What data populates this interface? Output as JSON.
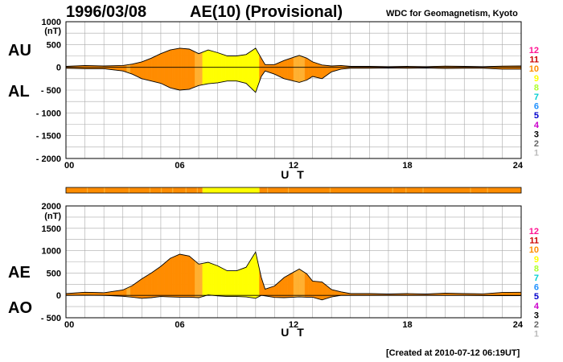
{
  "header": {
    "date": "1996/03/08",
    "title": "AE(10) (Provisional)",
    "source": "WDC for Geomagnetism, Kyoto"
  },
  "footer": {
    "created": "[Created at 2010-07-12 06:19UT]"
  },
  "legend_levels": [
    "12",
    "11",
    "10",
    "9",
    "8",
    "7",
    "6",
    "5",
    "4",
    "3",
    "2",
    "1"
  ],
  "colors": {
    "level_palette": [
      "#ff1493",
      "#cc0000",
      "#ff8c00",
      "#ffff00",
      "#adff2f",
      "#00ced1",
      "#1e90ff",
      "#0000cd",
      "#cc00cc",
      "#000000",
      "#666666",
      "#bbbbbb"
    ],
    "fill_orange": "#ff8c00",
    "fill_yellow": "#ffff00",
    "fill_light_orange": "#ffb030",
    "grid": "#aaaaaa"
  },
  "chart_data": [
    {
      "type": "area",
      "name": "AU/AL",
      "labels": {
        "upper": "AU",
        "lower": "AL"
      },
      "unit_label": "(nT)",
      "xlabel": "U T",
      "ylim": [
        -2000,
        1000
      ],
      "ytick_labels": [
        "1000",
        "500",
        "0",
        "- 500",
        "- 1000",
        "- 1500",
        "- 2000"
      ],
      "ytick_values": [
        1000,
        500,
        0,
        -500,
        -1000,
        -1500,
        -2000
      ],
      "xlim": [
        0,
        24
      ],
      "xtick_labels": [
        "00",
        "06",
        "12",
        "18",
        "24"
      ],
      "xtick_values": [
        0,
        6,
        12,
        18,
        24
      ],
      "grid": true,
      "x": [
        0,
        1,
        2,
        3,
        3.5,
        4,
        4.5,
        5,
        5.5,
        6,
        6.5,
        7,
        7.5,
        8,
        8.5,
        9,
        9.5,
        10,
        10.3,
        10.5,
        11,
        11.5,
        12,
        12.3,
        12.7,
        13,
        13.5,
        14,
        14.5,
        15,
        16,
        17,
        18,
        19,
        20,
        21,
        22,
        23,
        24
      ],
      "au": [
        20,
        40,
        30,
        40,
        70,
        120,
        200,
        300,
        380,
        420,
        400,
        300,
        380,
        320,
        250,
        250,
        280,
        420,
        200,
        60,
        60,
        150,
        220,
        260,
        200,
        120,
        50,
        30,
        40,
        20,
        20,
        15,
        20,
        15,
        25,
        20,
        15,
        25,
        30
      ],
      "al": [
        -20,
        -30,
        -30,
        -80,
        -150,
        -250,
        -300,
        -350,
        -450,
        -500,
        -480,
        -400,
        -360,
        -340,
        -300,
        -300,
        -350,
        -550,
        -200,
        -80,
        -150,
        -250,
        -300,
        -330,
        -280,
        -200,
        -250,
        -100,
        -40,
        -20,
        -20,
        -15,
        -20,
        -15,
        -25,
        -20,
        -20,
        -40,
        -40
      ]
    },
    {
      "type": "area",
      "name": "AE/AO",
      "labels": {
        "upper": "AE",
        "lower": "AO"
      },
      "unit_label": "(nT)",
      "xlabel": "U T",
      "ylim": [
        -500,
        2000
      ],
      "ytick_labels": [
        "2000",
        "1500",
        "1000",
        "500",
        "0",
        "- 500"
      ],
      "ytick_values": [
        2000,
        1500,
        1000,
        500,
        0,
        -500
      ],
      "xlim": [
        0,
        24
      ],
      "xtick_labels": [
        "00",
        "06",
        "12",
        "18",
        "24"
      ],
      "xtick_values": [
        0,
        6,
        12,
        18,
        24
      ],
      "grid": true,
      "x": [
        0,
        1,
        2,
        3,
        3.5,
        4,
        4.5,
        5,
        5.5,
        6,
        6.5,
        7,
        7.5,
        8,
        8.5,
        9,
        9.5,
        10,
        10.3,
        10.5,
        11,
        11.5,
        12,
        12.3,
        12.7,
        13,
        13.5,
        14,
        14.5,
        15,
        16,
        17,
        18,
        19,
        20,
        21,
        22,
        23,
        24
      ],
      "ae": [
        40,
        70,
        60,
        120,
        220,
        370,
        500,
        650,
        830,
        920,
        880,
        700,
        740,
        660,
        550,
        550,
        630,
        970,
        400,
        140,
        210,
        400,
        520,
        590,
        480,
        320,
        300,
        130,
        80,
        40,
        40,
        30,
        40,
        30,
        50,
        40,
        35,
        65,
        70
      ],
      "ao": [
        0,
        5,
        0,
        -20,
        -40,
        -65,
        -50,
        -25,
        -35,
        -40,
        -40,
        -50,
        10,
        -10,
        -25,
        -25,
        -35,
        -65,
        0,
        -10,
        -45,
        -50,
        -40,
        -35,
        -40,
        -40,
        -100,
        -35,
        0,
        0,
        0,
        0,
        0,
        0,
        0,
        0,
        -3,
        -8,
        -5
      ]
    }
  ],
  "activity_bar": {
    "segments": [
      {
        "from": 0,
        "to": 7.2,
        "level": "10"
      },
      {
        "from": 7.2,
        "to": 10.2,
        "level": "9"
      },
      {
        "from": 10.2,
        "to": 24,
        "level": "10"
      }
    ]
  }
}
